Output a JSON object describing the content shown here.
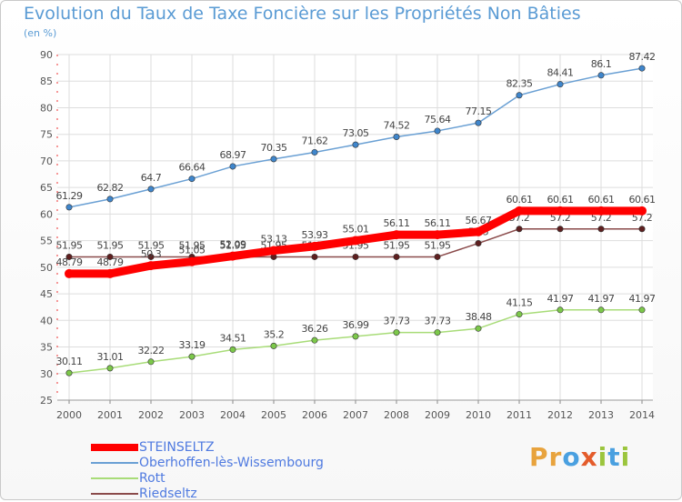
{
  "title": "Evolution du Taux de Taxe Foncière sur les Propriétés Non Bâties",
  "subtitle": "(en %)",
  "logo": {
    "text": "Proxiti",
    "letters": [
      "P",
      "r",
      "o",
      "x",
      "i",
      "t",
      "i"
    ],
    "colors": [
      "#e8a33d",
      "#e8a33d",
      "#4aa0e0",
      "#e45c2b",
      "#9bc53d",
      "#4aa0e0",
      "#9bc53d"
    ]
  },
  "chart_data": {
    "type": "line",
    "categories": [
      "2000",
      "2001",
      "2002",
      "2003",
      "2004",
      "2005",
      "2006",
      "2007",
      "2008",
      "2009",
      "2010",
      "2011",
      "2012",
      "2013",
      "2014"
    ],
    "ylim": [
      25,
      90
    ],
    "yticks": [
      "25",
      "30",
      "35",
      "40",
      "45",
      "50",
      "55",
      "60",
      "65",
      "70",
      "75",
      "80",
      "85",
      "90"
    ],
    "grid": true,
    "legend_position": "bottom-left",
    "series": [
      {
        "name": "Oberhoffen-lès-Wissembourg",
        "color": "#6aa0d4",
        "marker": "#3f86cc",
        "values": [
          61.29,
          62.82,
          64.7,
          66.64,
          68.97,
          70.35,
          71.62,
          73.05,
          74.52,
          75.64,
          77.15,
          82.35,
          84.41,
          86.1,
          87.42
        ],
        "labels": [
          "61.29",
          "62.82",
          "64.7",
          "66.64",
          "68.97",
          "70.35",
          "71.62",
          "73.05",
          "74.52",
          "75.64",
          "77.15",
          "82.35",
          "84.41",
          "86.1",
          "87.42"
        ]
      },
      {
        "name": "Rott",
        "color": "#a8dc78",
        "marker": "#7cc84a",
        "values": [
          30.11,
          31.01,
          32.22,
          33.19,
          34.51,
          35.2,
          36.26,
          36.99,
          37.73,
          37.73,
          38.48,
          41.15,
          41.97,
          41.97,
          41.97
        ],
        "labels": [
          "30.11",
          "31.01",
          "32.22",
          "33.19",
          "34.51",
          "35.2",
          "36.26",
          "36.99",
          "37.73",
          "37.73",
          "38.48",
          "41.15",
          "41.97",
          "41.97",
          "41.97"
        ]
      },
      {
        "name": "Riedseltz",
        "color": "#8a4a4a",
        "marker": "#5e1f1f",
        "values": [
          51.95,
          51.95,
          51.95,
          51.95,
          51.95,
          51.95,
          51.95,
          51.95,
          51.95,
          51.95,
          54.5,
          57.2,
          57.2,
          57.2,
          57.2
        ],
        "labels": [
          "51.95",
          "51.95",
          "51.95",
          "51.95",
          "51.95",
          "51.95",
          "51.95",
          "51.95",
          "51.95",
          "51.95",
          "54.5",
          "57.2",
          "57.2",
          "57.2",
          "57.2"
        ]
      },
      {
        "name": "STEINSELTZ",
        "color": "#ff0000",
        "marker": "#ff0000",
        "values": [
          48.79,
          48.79,
          50.3,
          51.05,
          52.09,
          53.13,
          53.93,
          55.01,
          56.11,
          56.11,
          56.67,
          60.61,
          60.61,
          60.61,
          60.61
        ],
        "labels": [
          "48.79",
          "48.79",
          "50.3",
          "51.05",
          "52.09",
          "53.13",
          "53.93",
          "55.01",
          "56.11",
          "56.11",
          "56.67",
          "60.61",
          "60.61",
          "60.61",
          "60.61"
        ]
      }
    ],
    "legend_order": [
      "STEINSELTZ",
      "Oberhoffen-lès-Wissembourg",
      "Rott",
      "Riedseltz"
    ]
  }
}
